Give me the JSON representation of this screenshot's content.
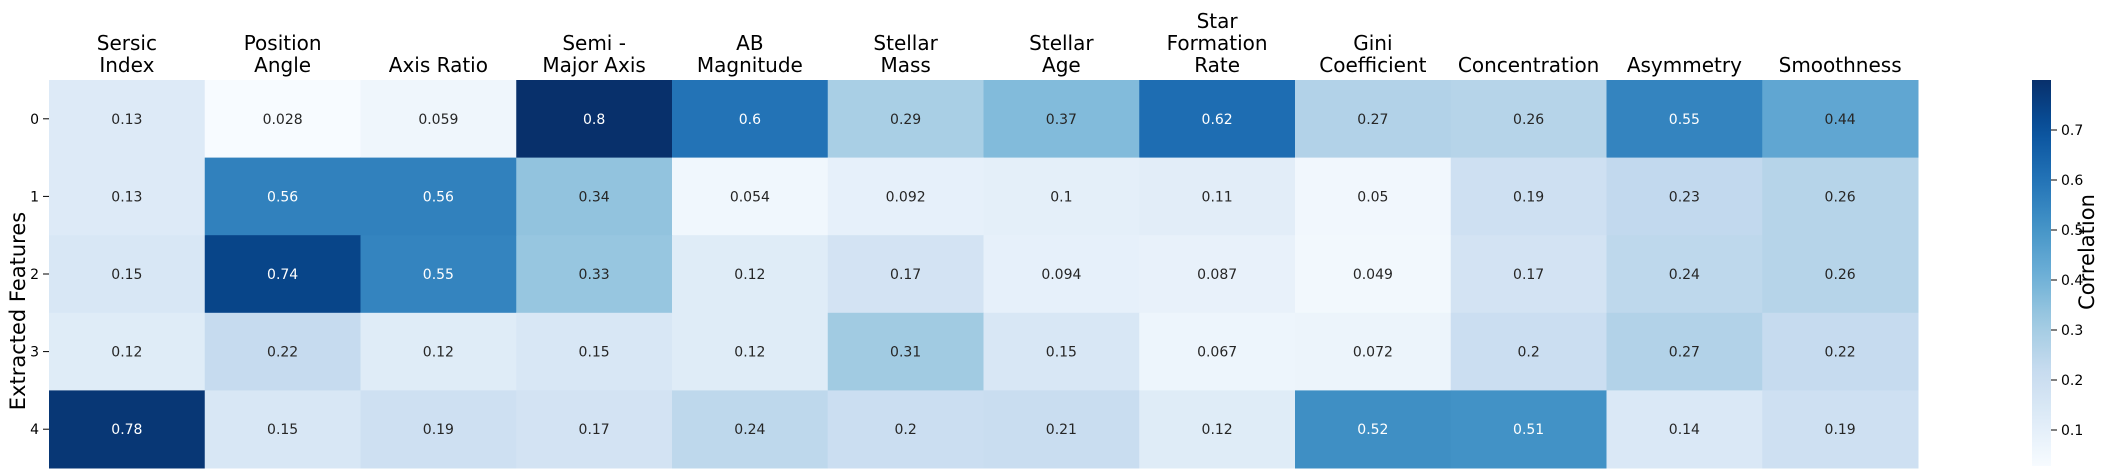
{
  "chart_data": {
    "type": "heatmap",
    "columns": [
      "Sersic\nIndex",
      "Position\nAngle",
      "Axis Ratio",
      "Semi -\nMajor Axis",
      "AB\nMagnitude",
      "Stellar\nMass",
      "Stellar\nAge",
      "Star\nFormation\nRate",
      "Gini\nCoefficient",
      "Concentration",
      "Asymmetry",
      "Smoothness"
    ],
    "rows": [
      "0",
      "1",
      "2",
      "3",
      "4"
    ],
    "values": [
      [
        0.13,
        0.028,
        0.059,
        0.8,
        0.6,
        0.29,
        0.37,
        0.62,
        0.27,
        0.26,
        0.55,
        0.44
      ],
      [
        0.13,
        0.56,
        0.56,
        0.34,
        0.054,
        0.092,
        0.1,
        0.11,
        0.05,
        0.19,
        0.23,
        0.26
      ],
      [
        0.15,
        0.74,
        0.55,
        0.33,
        0.12,
        0.17,
        0.094,
        0.087,
        0.049,
        0.17,
        0.24,
        0.26
      ],
      [
        0.12,
        0.22,
        0.12,
        0.15,
        0.12,
        0.31,
        0.15,
        0.067,
        0.072,
        0.2,
        0.27,
        0.22
      ],
      [
        0.78,
        0.15,
        0.19,
        0.17,
        0.24,
        0.2,
        0.21,
        0.12,
        0.52,
        0.51,
        0.14,
        0.19
      ]
    ],
    "ylabel": "Extracted Features",
    "colorbar": {
      "label": "Correlation",
      "range": [
        0.028,
        0.8
      ],
      "ticks": [
        0.1,
        0.2,
        0.3,
        0.4,
        0.5,
        0.6,
        0.7
      ],
      "colormap": "Blues"
    },
    "x_tick_position": "top",
    "grid": false
  }
}
